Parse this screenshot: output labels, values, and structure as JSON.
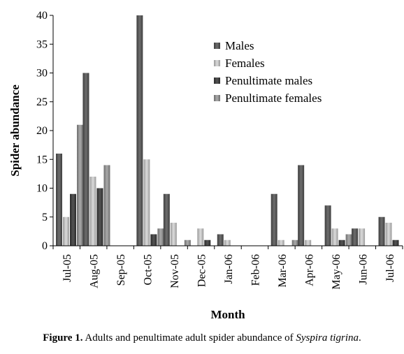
{
  "chart_data": {
    "type": "bar",
    "xlabel": "Month",
    "ylabel": "Spider abundance",
    "ylim": [
      0,
      40
    ],
    "yticks": [
      0,
      5,
      10,
      15,
      20,
      25,
      30,
      35,
      40
    ],
    "categories": [
      "Jul-05",
      "Aug-05",
      "Sep-05",
      "Oct-05",
      "Nov-05",
      "Dec-05",
      "Jan-06",
      "Feb-06",
      "Mar-06",
      "Apr-06",
      "May-06",
      "Jun-06",
      "Jul-06"
    ],
    "series": [
      {
        "name": "Males",
        "color": "#5a5a5a",
        "values": [
          16,
          30,
          0,
          40,
          9,
          0,
          2,
          0,
          9,
          14,
          7,
          3,
          5
        ]
      },
      {
        "name": "Females",
        "color": "#b8b8b8",
        "values": [
          5,
          12,
          0,
          15,
          4,
          3,
          1,
          0,
          1,
          1,
          3,
          3,
          4
        ]
      },
      {
        "name": "Penultimate males",
        "color": "#3f3f3f",
        "values": [
          9,
          10,
          0,
          2,
          0,
          1,
          0,
          0,
          0,
          0,
          1,
          0,
          1
        ]
      },
      {
        "name": "Penultimate females",
        "color": "#8e8e8e",
        "values": [
          21,
          14,
          0,
          3,
          1,
          0,
          0,
          0,
          1,
          0,
          2,
          0,
          0
        ]
      }
    ],
    "legend_position": "top-right",
    "grid": false
  },
  "caption": {
    "label": "Figure 1.",
    "text_before": " Adults and penultimate adult spider abundance of ",
    "species": "Syspira tigrina",
    "text_after": "."
  }
}
